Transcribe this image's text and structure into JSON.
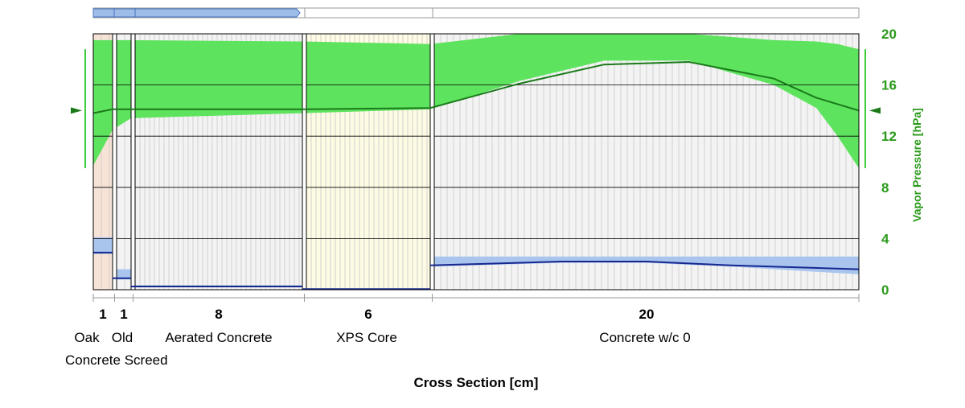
{
  "chart_data": {
    "type": "area",
    "title": "",
    "xlabel": "Cross Section [cm]",
    "ylabel": "Vapor Pressure [hPa]",
    "ylim": [
      0,
      20
    ],
    "yticks": [
      "0",
      "4",
      "8",
      "12",
      "16",
      "20"
    ],
    "grid": true,
    "progress_fraction": 0.27,
    "colors": {
      "vapor_band": "#5ee35e",
      "vapor_line": "#1a7a1a",
      "moisture_band": "#a9c5ee",
      "moisture_line": "#16288f",
      "oak": "#f7e3d6",
      "xps": "#fdfbe3",
      "concrete": "#f3f3f3",
      "axis_label": "#2a9a1a"
    },
    "layers": [
      {
        "thickness_cm": 1,
        "thickness_label": "1",
        "name_lines": [
          "Oak"
        ],
        "fill": "oak"
      },
      {
        "thickness_cm": 1,
        "thickness_label": "1",
        "name_lines": [
          "Old"
        ],
        "fill": "concrete"
      },
      {
        "thickness_cm": 8,
        "thickness_label": "8",
        "name_lines": [
          "Aerated Concrete"
        ],
        "fill": "concrete"
      },
      {
        "thickness_cm": 6,
        "thickness_label": "6",
        "name_lines": [
          "XPS Core"
        ],
        "fill": "xps"
      },
      {
        "thickness_cm": 20,
        "thickness_label": "20",
        "name_lines": [
          "Concrete w/c 0"
        ],
        "fill": "concrete"
      }
    ],
    "extra_label": "Concrete Screed",
    "vapor_pressure": {
      "x_cm": [
        0,
        1,
        2,
        10,
        16,
        20,
        24,
        28,
        32,
        34,
        36
      ],
      "y_hPa": [
        13.8,
        14.1,
        14.1,
        14.1,
        14.2,
        16.1,
        17.6,
        17.8,
        16.5,
        15.0,
        14.0
      ]
    },
    "vapor_pressure_range": {
      "x_cm": [
        0,
        1,
        2,
        10,
        16,
        20,
        24,
        28,
        32,
        34,
        35,
        36
      ],
      "min_hPa": [
        9.7,
        12.5,
        13.4,
        13.8,
        14.1,
        16.3,
        17.9,
        17.9,
        16.0,
        14.2,
        12.0,
        9.5
      ],
      "max_hPa": [
        19.5,
        19.5,
        19.5,
        19.4,
        19.2,
        20.0,
        20.0,
        20.0,
        19.5,
        19.4,
        19.2,
        18.8
      ]
    },
    "moisture_layers": [
      {
        "x0": 0,
        "x1": 1,
        "mean": 2.9,
        "min": 2.8,
        "max": 4.1
      },
      {
        "x0": 1,
        "x1": 2,
        "mean": 0.9,
        "min": 0.8,
        "max": 1.6
      },
      {
        "x0": 2,
        "x1": 10,
        "mean": 0.25,
        "min": 0.2,
        "max": 0.35
      },
      {
        "x0": 10,
        "x1": 16,
        "mean": 0.05,
        "min": 0.02,
        "max": 0.1
      },
      {
        "x0": 16,
        "x1": 36,
        "x": [
          16,
          22,
          26,
          30,
          36
        ],
        "mean": [
          1.9,
          2.2,
          2.2,
          1.9,
          1.6
        ],
        "min": [
          1.8,
          2.1,
          2.1,
          1.8,
          1.2
        ],
        "max": [
          2.6,
          2.6,
          2.6,
          2.6,
          2.6
        ]
      }
    ],
    "exterior_marker_hPa": 14.0,
    "exterior_range_hPa": [
      9.5,
      18.8
    ]
  }
}
